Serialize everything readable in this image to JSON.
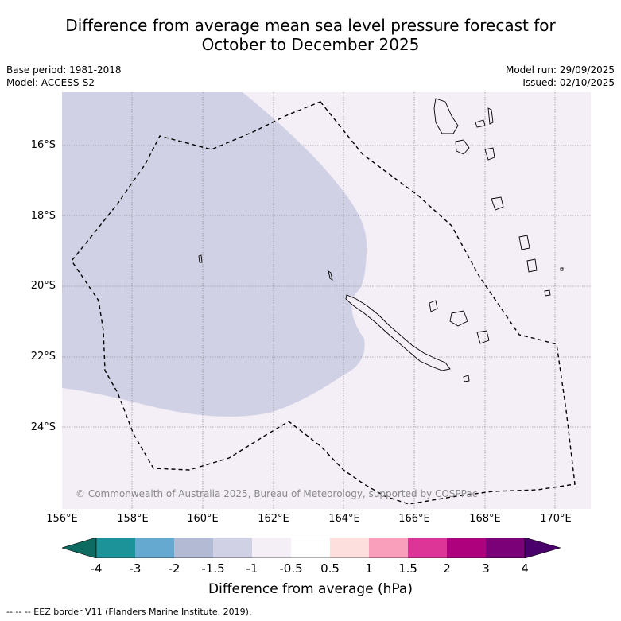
{
  "header": {
    "title_line1": "Difference from average mean sea level pressure forecast for",
    "title_line2": "October to December 2025"
  },
  "meta": {
    "base_period": "Base period: 1981-2018",
    "model": "Model: ACCESS-S2",
    "model_run": "Model run: 29/09/2025",
    "issued": "Issued: 02/10/2025"
  },
  "map": {
    "region": "New Caledonia EEZ",
    "lat_labels": [
      "16°S",
      "18°S",
      "20°S",
      "22°S",
      "24°S"
    ],
    "lon_labels": [
      "156°E",
      "158°E",
      "160°E",
      "162°E",
      "164°E",
      "166°E",
      "168°E",
      "170°E"
    ],
    "copyright": "© Commonwealth of Australia 2025, Bureau of Meteorology, supported by COSPPac",
    "colors": {
      "background_anomaly": "#f4eef6",
      "negative_anomaly": "#d1d1e6",
      "coast": "#000000",
      "grid": "#777777"
    }
  },
  "legend": {
    "ticks": [
      "-4",
      "-3",
      "-2",
      "-1.5",
      "-1",
      "-0.5",
      "0.5",
      "1",
      "1.5",
      "2",
      "3",
      "4"
    ],
    "colors": [
      "#0e6b62",
      "#1b9399",
      "#65a9d1",
      "#b2bad4",
      "#d1d1e6",
      "#f4eef6",
      "#ffffff",
      "#fde0dd",
      "#f99fbb",
      "#dd3497",
      "#ae017e",
      "#7a0177",
      "#49006a"
    ],
    "title": "Difference from average (hPa)"
  },
  "footnote": "--  --  -- EEZ border V11 (Flanders Marine Institute, 2019)."
}
